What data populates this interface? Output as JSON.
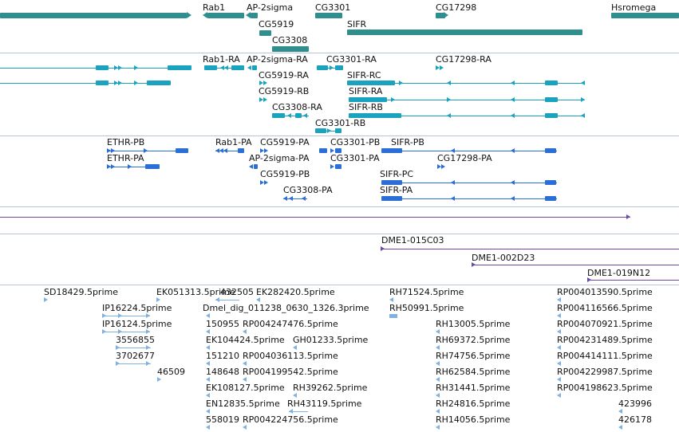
{
  "colors": {
    "gene": "#2f8f8f",
    "transcript_cyan": "#1aa3bf",
    "transcript_blue": "#2b6fd6",
    "clone_purple": "#6a4aa5",
    "est": "#7fb2e0",
    "divider": "#b9c4d6"
  },
  "genes": {
    "rab1": "Rab1",
    "ap2sigma": "AP-2sigma",
    "cg3301": "CG3301",
    "cg17298": "CG17298",
    "hsromega": "Hsromega",
    "cg5919": "CG5919",
    "sifr": "SIFR",
    "cg3308": "CG3308"
  },
  "transcripts_1": {
    "rab1_ra": "Rab1-RA",
    "ap2sigma_ra": "AP-2sigma-RA",
    "cg3301_ra": "CG3301-RA",
    "cg17298_ra": "CG17298-RA",
    "cg5919_ra": "CG5919-RA",
    "sifr_rc": "SIFR-RC",
    "cg5919_rb": "CG5919-RB",
    "sifr_ra": "SIFR-RA",
    "cg3308_ra": "CG3308-RA",
    "sifr_rb": "SIFR-RB",
    "cg3301_rb": "CG3301-RB"
  },
  "transcripts_2": {
    "ethr_pb": "ETHR-PB",
    "rab1_pa": "Rab1-PA",
    "cg5919_pa": "CG5919-PA",
    "cg3301_pb": "CG3301-PB",
    "sifr_pb": "SIFR-PB",
    "ethr_pa": "ETHR-PA",
    "ap2sigma_pa": "AP-2sigma-PA",
    "cg3301_pa": "CG3301-PA",
    "cg17298_pa": "CG17298-PA",
    "cg5919_pb": "CG5919-PB",
    "sifr_pc": "SIFR-PC",
    "cg3308_pa": "CG3308-PA",
    "sifr_pa": "SIFR-PA"
  },
  "clones": {
    "c1": "DME1-015C03",
    "c2": "DME1-002D23",
    "c3": "DME1-019N12"
  },
  "ests": {
    "e1": "SD18429.5prime",
    "e2": "EK051313.5prime",
    "e3": "432505",
    "e4": "EK282420.5prime",
    "e5": "RH71524.5prime",
    "e6": "RP004013590.5prime",
    "e7": "IP16224.5prime",
    "e8": "Dmel_dig_011238_0630_1326.3prime",
    "e9": "RH50991.5prime",
    "e10": "RP004116566.5prime",
    "e11": "IP16124.5prime",
    "e12": "150955",
    "e13": "RP004247476.5prime",
    "e14": "RH13005.5prime",
    "e15": "RP004070921.5prime",
    "e16": "3556855",
    "e17": "EK104424.5prime",
    "e18": "GH01233.5prime",
    "e19": "RH69372.5prime",
    "e20": "RP004231489.5prime",
    "e21": "3702677",
    "e22": "151210",
    "e23": "RP004036113.5prime",
    "e24": "RH74756.5prime",
    "e25": "RP004414111.5prime",
    "e26": "46509",
    "e27": "148648",
    "e28": "RP004199542.5prime",
    "e29": "RH62584.5prime",
    "e30": "RP004229987.5prime",
    "e31": "EK108127.5prime",
    "e32": "RH39262.5prime",
    "e33": "RH31441.5prime",
    "e34": "RP004198623.5prime",
    "e35": "EN12835.5prime",
    "e36": "RH43119.5prime",
    "e37": "RH24816.5prime",
    "e38": "423996",
    "e39": "558019",
    "e40": "RP004224756.5prime",
    "e41": "RH14056.5prime",
    "e42": "426178"
  }
}
